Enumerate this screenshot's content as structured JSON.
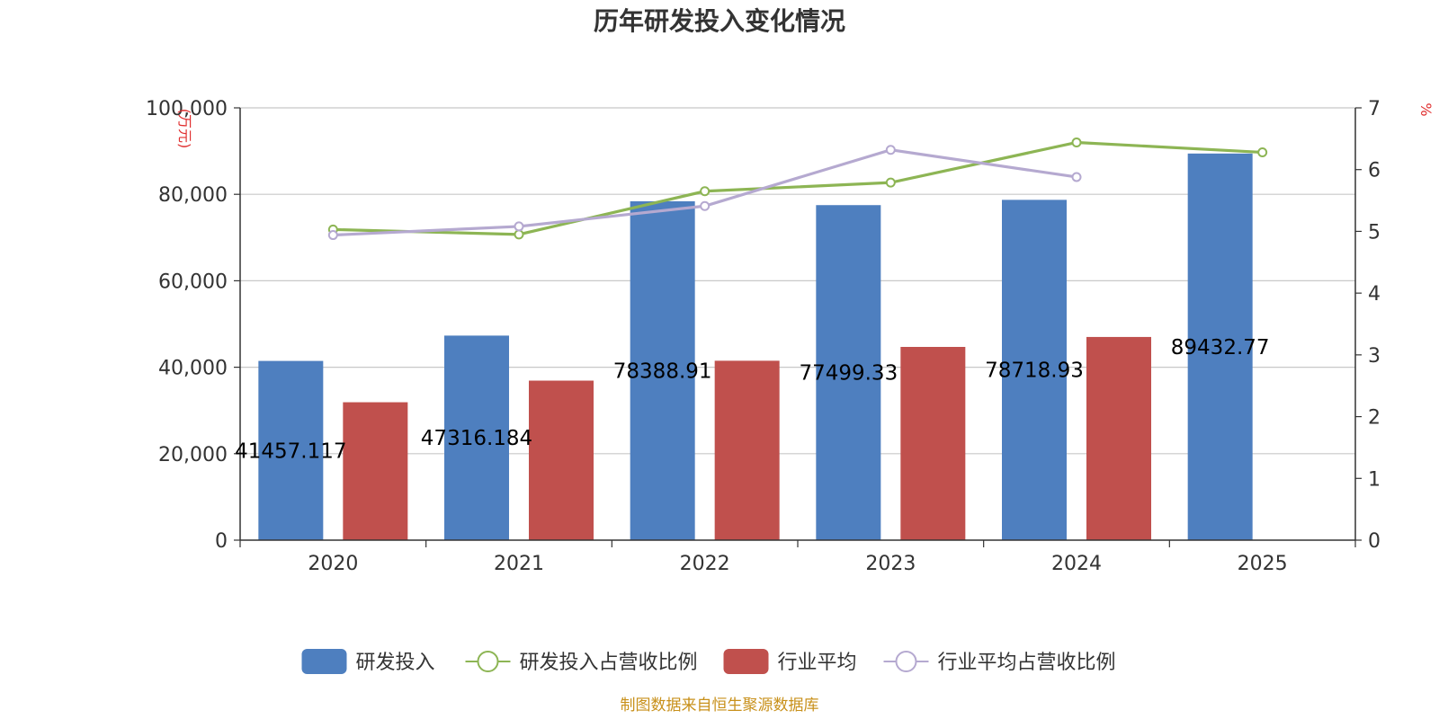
{
  "chart_data": {
    "type": "bar",
    "title": "历年研发投入变化情况",
    "categories": [
      "2020",
      "2021",
      "2022",
      "2023",
      "2024",
      "2025"
    ],
    "y_left": {
      "unit": "(万元)",
      "ylim": [
        0,
        100000
      ],
      "ticks": [
        0,
        20000,
        40000,
        60000,
        80000,
        100000
      ],
      "tick_labels": [
        "0",
        "20,000",
        "40,000",
        "60,000",
        "80,000",
        "100,000"
      ]
    },
    "y_right": {
      "unit": "%",
      "ylim": [
        0,
        7
      ],
      "ticks": [
        0,
        1,
        2,
        3,
        4,
        5,
        6,
        7
      ]
    },
    "series": [
      {
        "name": "研发投入",
        "kind": "bar",
        "axis": "left",
        "color": "#4e7fbf",
        "values": [
          41457.117,
          47316.184,
          78388.91,
          77499.33,
          78718.93,
          89432.77
        ],
        "labels": [
          "41457.117",
          "47316.184",
          "78388.91",
          "77499.33",
          "78718.93",
          "89432.77"
        ]
      },
      {
        "name": "研发投入占营收比例",
        "kind": "line",
        "axis": "right",
        "color": "#8db554",
        "values": [
          5.03,
          4.95,
          5.65,
          5.79,
          6.44,
          6.28
        ]
      },
      {
        "name": "行业平均",
        "kind": "bar",
        "axis": "left",
        "color": "#c0504d",
        "values": [
          31900,
          36900,
          41500,
          44700,
          47000,
          null
        ]
      },
      {
        "name": "行业平均占营收比例",
        "kind": "line",
        "axis": "right",
        "color": "#b5a9d0",
        "values": [
          4.94,
          5.08,
          5.41,
          6.32,
          5.88,
          null
        ]
      }
    ],
    "grid": true,
    "legend": "bottom-center"
  },
  "footer": {
    "source": "制图数据来自恒生聚源数据库"
  }
}
